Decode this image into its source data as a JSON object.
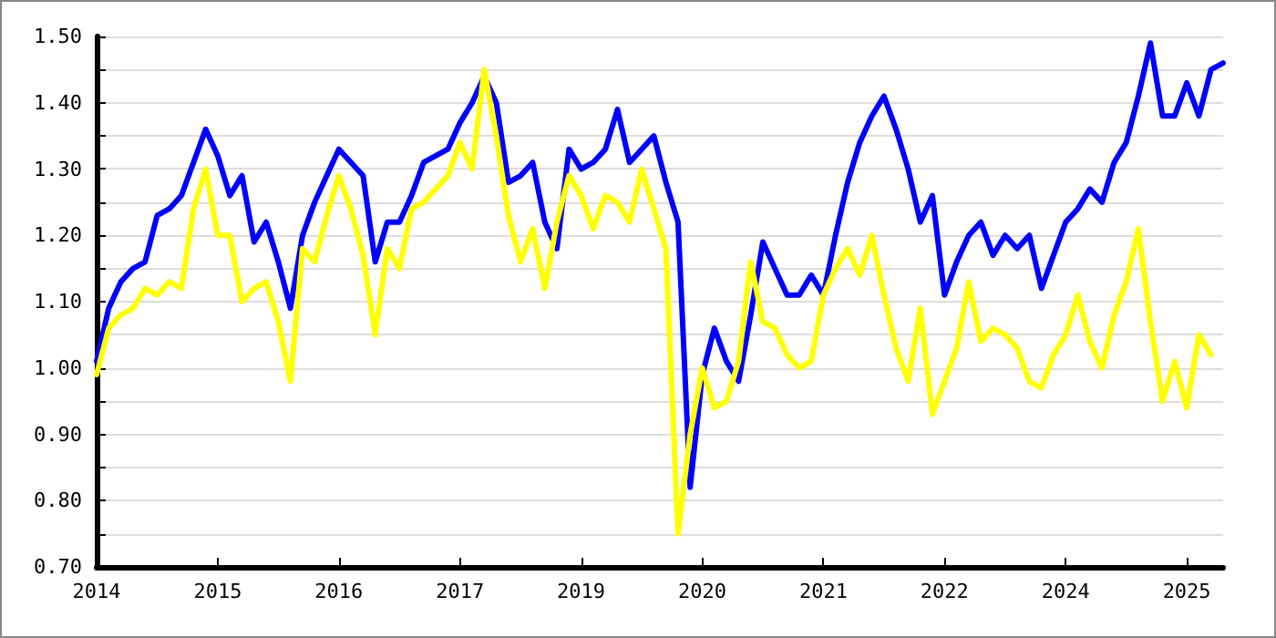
{
  "chart_data": {
    "type": "line",
    "grid": "y",
    "marker": "none",
    "line_style": "solid",
    "categories": [
      "2014",
      null,
      null,
      null,
      null,
      null,
      null,
      null,
      null,
      null,
      "2015",
      null,
      null,
      null,
      null,
      null,
      null,
      null,
      null,
      null,
      "2016",
      null,
      null,
      null,
      null,
      null,
      null,
      null,
      null,
      null,
      "2017",
      null,
      null,
      null,
      null,
      null,
      null,
      null,
      null,
      null,
      "2019",
      null,
      null,
      null,
      null,
      null,
      null,
      null,
      null,
      null,
      "2020",
      null,
      null,
      null,
      null,
      null,
      null,
      null,
      null,
      null,
      "2021",
      null,
      null,
      null,
      null,
      null,
      null,
      null,
      null,
      null,
      "2022",
      null,
      null,
      null,
      null,
      null,
      null,
      null,
      null,
      null,
      "2024",
      null,
      null,
      null,
      null,
      null,
      null,
      null,
      null,
      null,
      "2025",
      null,
      null,
      null
    ],
    "ylim": [
      0.7,
      1.5
    ],
    "yticks": [
      {
        "value": 0.7,
        "label": "0.70"
      },
      {
        "value": 0.75,
        "label": null
      },
      {
        "value": 0.8,
        "label": "0.80"
      },
      {
        "value": 0.85,
        "label": null
      },
      {
        "value": 0.9,
        "label": "0.90"
      },
      {
        "value": 0.95,
        "label": null
      },
      {
        "value": 1.0,
        "label": "1.00"
      },
      {
        "value": 1.05,
        "label": null
      },
      {
        "value": 1.1,
        "label": "1.10"
      },
      {
        "value": 1.15,
        "label": null
      },
      {
        "value": 1.2,
        "label": "1.20"
      },
      {
        "value": 1.25,
        "label": null
      },
      {
        "value": 1.3,
        "label": "1.30"
      },
      {
        "value": 1.35,
        "label": null
      },
      {
        "value": 1.4,
        "label": "1.40"
      },
      {
        "value": 1.45,
        "label": null
      },
      {
        "value": 1.5,
        "label": "1.50"
      }
    ],
    "series": [
      {
        "color": "#0000ff",
        "values": [
          1.01,
          1.09,
          1.13,
          1.15,
          1.16,
          1.23,
          1.24,
          1.26,
          1.31,
          1.36,
          1.32,
          1.26,
          1.29,
          1.19,
          1.22,
          1.16,
          1.09,
          1.2,
          1.25,
          1.29,
          1.33,
          1.31,
          1.29,
          1.16,
          1.22,
          1.22,
          1.26,
          1.31,
          1.32,
          1.33,
          1.37,
          1.4,
          1.44,
          1.4,
          1.28,
          1.29,
          1.31,
          1.22,
          1.18,
          1.33,
          1.3,
          1.31,
          1.33,
          1.39,
          1.31,
          1.33,
          1.35,
          1.28,
          1.22,
          0.82,
          0.99,
          1.06,
          1.01,
          0.98,
          1.08,
          1.19,
          1.15,
          1.11,
          1.11,
          1.14,
          1.11,
          1.2,
          1.28,
          1.34,
          1.38,
          1.41,
          1.36,
          1.3,
          1.22,
          1.26,
          1.11,
          1.16,
          1.2,
          1.22,
          1.17,
          1.2,
          1.18,
          1.2,
          1.12,
          1.17,
          1.22,
          1.24,
          1.27,
          1.25,
          1.31,
          1.34,
          1.41,
          1.49,
          1.38,
          1.38,
          1.43,
          1.38,
          1.45,
          1.46
        ]
      },
      {
        "color": "#ffff00",
        "values": [
          0.99,
          1.06,
          1.08,
          1.09,
          1.12,
          1.11,
          1.13,
          1.12,
          1.24,
          1.3,
          1.2,
          1.2,
          1.1,
          1.12,
          1.13,
          1.07,
          0.98,
          1.18,
          1.16,
          1.23,
          1.29,
          1.24,
          1.17,
          1.05,
          1.18,
          1.15,
          1.24,
          1.25,
          1.27,
          1.29,
          1.34,
          1.3,
          1.45,
          1.35,
          1.23,
          1.16,
          1.21,
          1.12,
          1.22,
          1.29,
          1.26,
          1.21,
          1.26,
          1.25,
          1.22,
          1.3,
          1.24,
          1.18,
          0.75,
          0.9,
          1.0,
          0.94,
          0.95,
          1.01,
          1.16,
          1.07,
          1.06,
          1.02,
          1.0,
          1.01,
          1.11,
          1.15,
          1.18,
          1.14,
          1.2,
          1.11,
          1.03,
          0.98,
          1.09,
          0.93,
          0.98,
          1.03,
          1.13,
          1.04,
          1.06,
          1.05,
          1.03,
          0.98,
          0.97,
          1.02,
          1.05,
          1.11,
          1.04,
          1.0,
          1.08,
          1.13,
          1.21,
          1.07,
          0.95,
          1.01,
          0.94,
          1.05,
          1.02,
          null
        ]
      }
    ]
  }
}
